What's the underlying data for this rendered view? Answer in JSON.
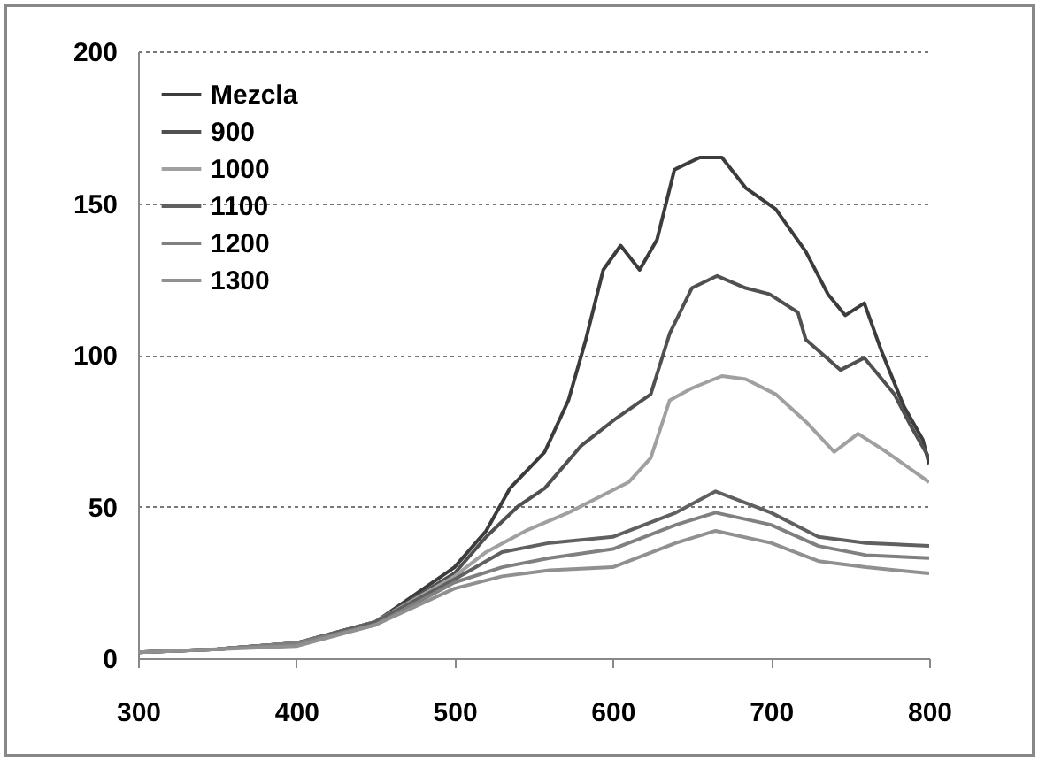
{
  "chart_data": {
    "type": "line",
    "xlim": [
      300,
      800
    ],
    "xticks": [
      300,
      400,
      500,
      600,
      700,
      800
    ],
    "ylim": [
      0,
      200
    ],
    "yticks": [
      0,
      50,
      100,
      150,
      200
    ],
    "grid": "y",
    "legend": "top left",
    "line_style": "solid",
    "series": [
      {
        "name": "Mezcla",
        "color": "#3c3c3c",
        "x": [
          300,
          350,
          400,
          450,
          500,
          520,
          535,
          557,
          572,
          583,
          594,
          605,
          617,
          628,
          639,
          655,
          669,
          684,
          703,
          722,
          736,
          747,
          759,
          770,
          784,
          796,
          800
        ],
        "values": [
          2,
          3,
          5,
          12,
          30,
          42,
          56,
          68,
          85,
          105,
          128,
          136,
          128,
          138,
          161,
          165,
          165,
          155,
          148,
          134,
          120,
          113,
          117,
          101,
          83,
          72,
          64
        ]
      },
      {
        "name": "900",
        "color": "#505050",
        "x": [
          300,
          350,
          400,
          450,
          500,
          520,
          540,
          557,
          580,
          602,
          624,
          636,
          650,
          666,
          684,
          699,
          717,
          722,
          744,
          759,
          778,
          789,
          800
        ],
        "values": [
          2,
          3,
          5,
          12,
          28,
          40,
          50,
          56,
          70,
          79,
          87,
          107,
          122,
          126,
          122,
          120,
          114,
          105,
          95,
          99,
          87,
          76,
          66
        ]
      },
      {
        "name": "1000",
        "color": "#a0a0a0",
        "x": [
          300,
          350,
          400,
          450,
          500,
          520,
          545,
          572,
          610,
          624,
          636,
          650,
          669,
          684,
          703,
          722,
          740,
          755,
          773,
          800
        ],
        "values": [
          2,
          3,
          5,
          12,
          27,
          35,
          42,
          48,
          58,
          66,
          85,
          89,
          93,
          92,
          87,
          78,
          68,
          74,
          68,
          58
        ]
      },
      {
        "name": "1100",
        "color": "#606060",
        "x": [
          300,
          350,
          400,
          450,
          500,
          530,
          560,
          600,
          640,
          665,
          700,
          730,
          760,
          800
        ],
        "values": [
          2,
          3,
          5,
          12,
          26,
          35,
          38,
          40,
          48,
          55,
          48,
          40,
          38,
          37
        ]
      },
      {
        "name": "1200",
        "color": "#808080",
        "x": [
          300,
          350,
          400,
          450,
          500,
          530,
          560,
          600,
          640,
          665,
          700,
          730,
          760,
          800
        ],
        "values": [
          2,
          3,
          5,
          11,
          25,
          30,
          33,
          36,
          44,
          48,
          44,
          37,
          34,
          33
        ]
      },
      {
        "name": "1300",
        "color": "#909090",
        "x": [
          300,
          350,
          400,
          450,
          500,
          530,
          560,
          600,
          640,
          665,
          700,
          730,
          760,
          800
        ],
        "values": [
          2,
          3,
          4,
          11,
          23,
          27,
          29,
          30,
          38,
          42,
          38,
          32,
          30,
          28
        ]
      }
    ]
  }
}
